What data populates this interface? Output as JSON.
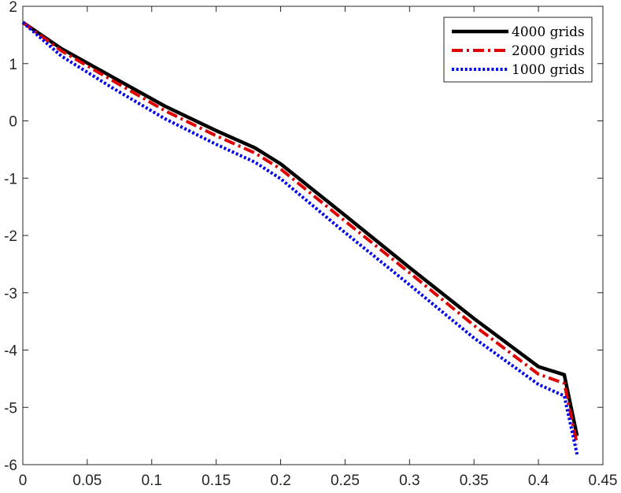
{
  "chart_data": {
    "type": "line",
    "title": "",
    "xlabel": "",
    "ylabel": "",
    "xlim": [
      0,
      0.45
    ],
    "ylim": [
      -6,
      2
    ],
    "xticks": [
      0,
      0.05,
      0.1,
      0.15,
      0.2,
      0.25,
      0.3,
      0.35,
      0.4,
      0.45
    ],
    "xtick_labels": [
      "0",
      "0.05",
      "0.1",
      "0.15",
      "0.2",
      "0.25",
      "0.3",
      "0.35",
      "0.4",
      "0.45"
    ],
    "yticks": [
      -6,
      -5,
      -4,
      -3,
      -2,
      -1,
      0,
      1,
      2
    ],
    "ytick_labels": [
      "-6",
      "-5",
      "-4",
      "-3",
      "-2",
      "-1",
      "0",
      "1",
      "2"
    ],
    "grid": false,
    "legend_position": "top-right",
    "series": [
      {
        "name": "4000 grids",
        "color": "#000000",
        "style": "solid",
        "x": [
          0,
          0.03,
          0.07,
          0.11,
          0.15,
          0.18,
          0.2,
          0.25,
          0.3,
          0.35,
          0.4,
          0.42,
          0.43
        ],
        "y": [
          1.72,
          1.26,
          0.76,
          0.26,
          -0.17,
          -0.47,
          -0.75,
          -1.65,
          -2.56,
          -3.45,
          -4.29,
          -4.43,
          -5.5
        ]
      },
      {
        "name": "2000 grids",
        "color": "#e00000",
        "style": "dashdot",
        "x": [
          0,
          0.03,
          0.07,
          0.11,
          0.15,
          0.18,
          0.2,
          0.25,
          0.3,
          0.35,
          0.4,
          0.42,
          0.43
        ],
        "y": [
          1.72,
          1.22,
          0.7,
          0.18,
          -0.26,
          -0.56,
          -0.84,
          -1.75,
          -2.65,
          -3.57,
          -4.42,
          -4.58,
          -5.65
        ]
      },
      {
        "name": "1000 grids",
        "color": "#0000ee",
        "style": "dotted",
        "x": [
          0,
          0.03,
          0.07,
          0.11,
          0.15,
          0.18,
          0.2,
          0.25,
          0.3,
          0.35,
          0.4,
          0.42,
          0.43
        ],
        "y": [
          1.72,
          1.13,
          0.57,
          0.04,
          -0.41,
          -0.72,
          -1.01,
          -1.95,
          -2.86,
          -3.79,
          -4.6,
          -4.8,
          -5.82
        ]
      }
    ]
  }
}
